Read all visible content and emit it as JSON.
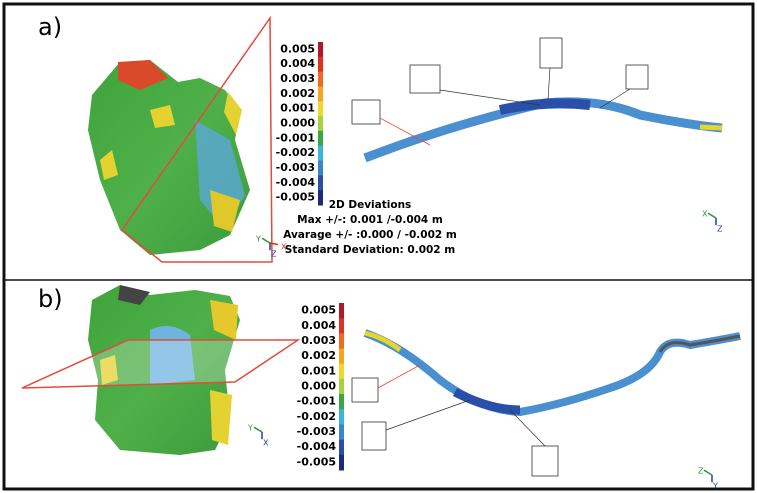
{
  "panels": [
    {
      "label": "a)",
      "colorbar": [
        "0.005",
        "0.004",
        "0.003",
        "0.002",
        "0.001",
        "0.000",
        "-0.001",
        "-0.002",
        "-0.003",
        "-0.004",
        "-0.005"
      ],
      "stats": {
        "title": "2D Deviations",
        "max": "Max +/-: 0.001 /-0.004 m",
        "average": "Avarage +/- :0.000 / -0.002 m",
        "std": "Standard Deviation: 0.002 m"
      },
      "model_axes": [
        "Y",
        "Z",
        "X"
      ],
      "section_axes": [
        "X",
        "Z"
      ]
    },
    {
      "label": "b)",
      "colorbar": [
        "0.005",
        "0.004",
        "0.003",
        "0.002",
        "0.001",
        "0.000",
        "-0.001",
        "-0.002",
        "-0.003",
        "-0.004",
        "-0.005"
      ],
      "model_axes": [
        "Y",
        "X"
      ],
      "section_axes": [
        "Z",
        "Y"
      ]
    }
  ]
}
